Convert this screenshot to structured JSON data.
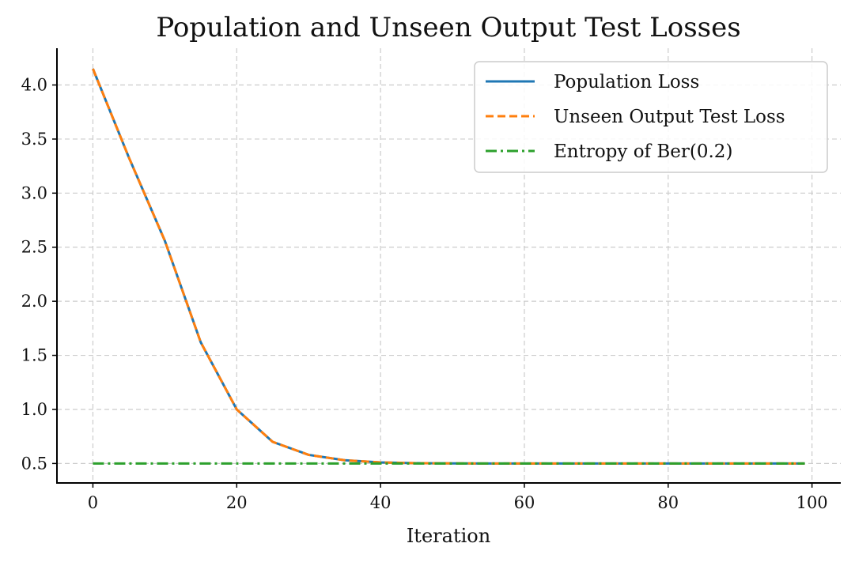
{
  "chart_data": {
    "type": "line",
    "title": "Population and Unseen Output Test Losses",
    "xlabel": "Iteration",
    "ylabel": "",
    "xlim": [
      -5,
      104
    ],
    "ylim": [
      0.32,
      4.34
    ],
    "xticks": [
      0,
      20,
      40,
      60,
      80,
      100
    ],
    "yticks": [
      0.5,
      1.0,
      1.5,
      2.0,
      2.5,
      3.0,
      3.5,
      4.0
    ],
    "xtick_labels": [
      "0",
      "20",
      "40",
      "60",
      "80",
      "100"
    ],
    "ytick_labels": [
      "0.5",
      "1.0",
      "1.5",
      "2.0",
      "2.5",
      "3.0",
      "3.5",
      "4.0"
    ],
    "grid": true,
    "legend_position": "top-right",
    "x": [
      0,
      5,
      10,
      15,
      20,
      25,
      30,
      35,
      40,
      45,
      50,
      55,
      60,
      65,
      70,
      75,
      80,
      85,
      90,
      95,
      99
    ],
    "series": [
      {
        "name": "Population Loss",
        "color": "#1f77b4",
        "style": "solid",
        "values": [
          4.15,
          3.33,
          2.56,
          1.62,
          1.0,
          0.7,
          0.58,
          0.53,
          0.51,
          0.503,
          0.501,
          0.5,
          0.5,
          0.5,
          0.5,
          0.5,
          0.5,
          0.5,
          0.5,
          0.5,
          0.5
        ]
      },
      {
        "name": "Unseen Output Test Loss",
        "color": "#ff7f0e",
        "style": "dashed",
        "values": [
          4.15,
          3.33,
          2.56,
          1.62,
          1.0,
          0.7,
          0.58,
          0.53,
          0.51,
          0.503,
          0.501,
          0.5,
          0.5,
          0.5,
          0.5,
          0.5,
          0.5,
          0.5,
          0.5,
          0.5,
          0.5
        ]
      },
      {
        "name": "Entropy of Ber(0.2)",
        "color": "#2ca02c",
        "style": "dashdot",
        "values": [
          0.5,
          0.5,
          0.5,
          0.5,
          0.5,
          0.5,
          0.5,
          0.5,
          0.5,
          0.5,
          0.5,
          0.5,
          0.5,
          0.5,
          0.5,
          0.5,
          0.5,
          0.5,
          0.5,
          0.5,
          0.5
        ]
      }
    ]
  }
}
